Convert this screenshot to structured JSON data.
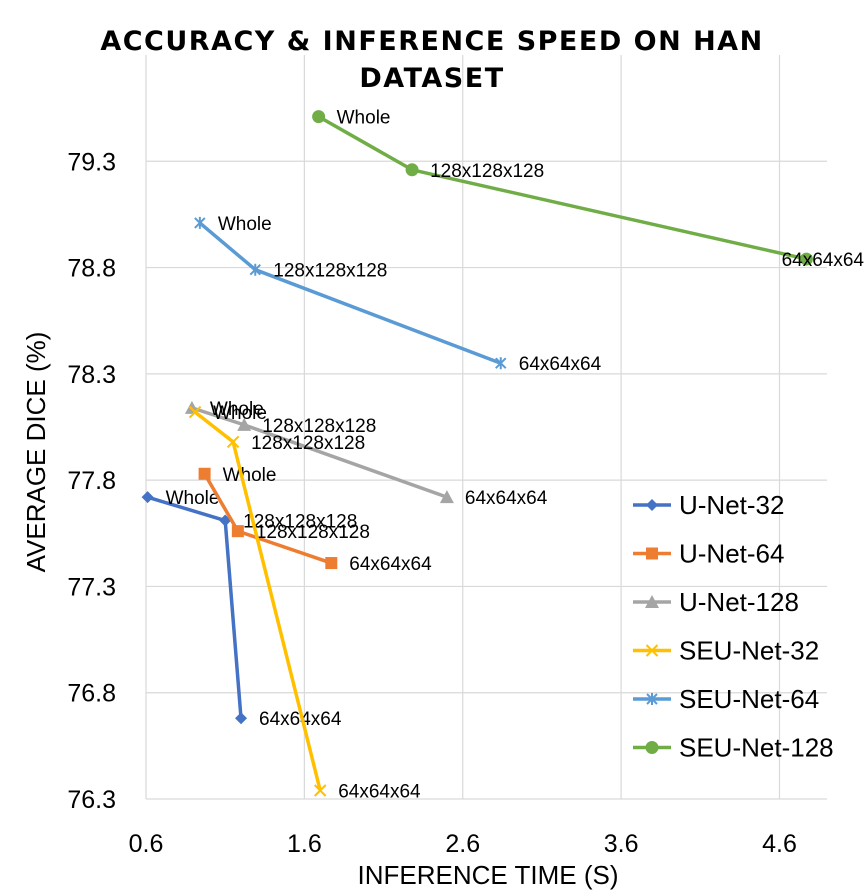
{
  "chart_data": {
    "type": "line",
    "title": "ACCURACY & INFERENCE SPEED ON HAN DATASET",
    "title_lines": [
      "ACCURACY & INFERENCE SPEED ON HAN",
      "DATASET"
    ],
    "xlabel": "INFERENCE TIME (S)",
    "ylabel": "AVERAGE DICE (%)",
    "xlim": [
      0.6,
      4.9
    ],
    "ylim": [
      76.3,
      79.8
    ],
    "xticks": [
      0.6,
      1.6,
      2.6,
      3.6,
      4.6
    ],
    "yticks": [
      76.3,
      76.8,
      77.3,
      77.8,
      78.3,
      78.8,
      79.3
    ],
    "xtick_labels": [
      "0.6",
      "1.6",
      "2.6",
      "3.6",
      "4.6"
    ],
    "ytick_labels": [
      "76.3",
      "76.8",
      "77.3",
      "77.8",
      "78.3",
      "78.8",
      "79.3"
    ],
    "grid": "vertical and horizontal",
    "legend_position": "right",
    "series": [
      {
        "name": "U-Net-32",
        "color": "#4472C4",
        "marker": "diamond",
        "points": [
          {
            "x": 0.61,
            "y": 77.72,
            "label": "Whole"
          },
          {
            "x": 1.1,
            "y": 77.61,
            "label": "128x128x128"
          },
          {
            "x": 1.2,
            "y": 76.68,
            "label": "64x64x64"
          }
        ]
      },
      {
        "name": "U-Net-64",
        "color": "#ED7D31",
        "marker": "square",
        "points": [
          {
            "x": 0.97,
            "y": 77.83,
            "label": "Whole"
          },
          {
            "x": 1.18,
            "y": 77.56,
            "label": "128x128x128"
          },
          {
            "x": 1.77,
            "y": 77.41,
            "label": "64x64x64"
          }
        ]
      },
      {
        "name": "U-Net-128",
        "color": "#A5A5A5",
        "marker": "triangle",
        "points": [
          {
            "x": 0.89,
            "y": 78.14,
            "label": "Whole"
          },
          {
            "x": 1.22,
            "y": 78.06,
            "label": "128x128x128"
          },
          {
            "x": 2.5,
            "y": 77.72,
            "label": "64x64x64"
          }
        ]
      },
      {
        "name": "SEU-Net-32",
        "color": "#FFC000",
        "marker": "x",
        "points": [
          {
            "x": 0.91,
            "y": 78.12,
            "label": "Whole"
          },
          {
            "x": 1.15,
            "y": 77.98,
            "label": "128x128x128"
          },
          {
            "x": 1.7,
            "y": 76.34,
            "label": "64x64x64"
          }
        ]
      },
      {
        "name": "SEU-Net-64",
        "color": "#5B9BD5",
        "marker": "star",
        "points": [
          {
            "x": 0.94,
            "y": 79.01,
            "label": "Whole"
          },
          {
            "x": 1.29,
            "y": 78.79,
            "label": "128x128x128"
          },
          {
            "x": 2.84,
            "y": 78.35,
            "label": "64x64x64"
          }
        ]
      },
      {
        "name": "SEU-Net-128",
        "color": "#70AD47",
        "marker": "circle",
        "points": [
          {
            "x": 1.69,
            "y": 79.51,
            "label": "Whole"
          },
          {
            "x": 2.28,
            "y": 79.26,
            "label": "128x128x128"
          },
          {
            "x": 4.77,
            "y": 78.84,
            "label": "64x64x64"
          }
        ]
      }
    ]
  }
}
